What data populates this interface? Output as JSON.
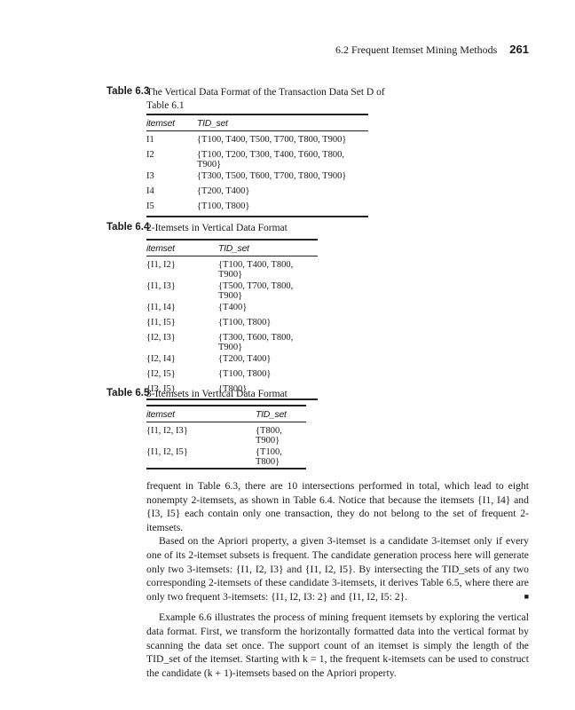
{
  "header": {
    "running_title": "6.2 Frequent Itemset Mining Methods",
    "page_number": "261"
  },
  "tables": [
    {
      "label": "Table 6.3",
      "caption": "The Vertical Data Format of the Transaction Data Set D of Table 6.1",
      "columns": [
        "itemset",
        "TID_set"
      ],
      "rows": [
        [
          "I1",
          "{T100, T400, T500, T700, T800, T900}"
        ],
        [
          "I2",
          "{T100, T200, T300, T400, T600, T800, T900}"
        ],
        [
          "I3",
          "{T300, T500, T600, T700, T800, T900}"
        ],
        [
          "I4",
          "{T200, T400}"
        ],
        [
          "I5",
          "{T100, T800}"
        ]
      ]
    },
    {
      "label": "Table 6.4",
      "caption": "2-Itemsets in Vertical Data Format",
      "columns": [
        "itemset",
        "TID_set"
      ],
      "rows": [
        [
          "{I1, I2}",
          "{T100, T400, T800, T900}"
        ],
        [
          "{I1, I3}",
          "{T500, T700, T800, T900}"
        ],
        [
          "{I1, I4}",
          "{T400}"
        ],
        [
          "{I1, I5}",
          "{T100, T800}"
        ],
        [
          "{I2, I3}",
          "{T300, T600, T800, T900}"
        ],
        [
          "{I2, I4}",
          "{T200, T400}"
        ],
        [
          "{I2, I5}",
          "{T100, T800}"
        ],
        [
          "{I3, I5}",
          "{T800}"
        ]
      ]
    },
    {
      "label": "Table 6.5",
      "caption": "3-Itemsets in Vertical Data Format",
      "columns": [
        "itemset",
        "TID_set"
      ],
      "rows": [
        [
          "{I1, I2, I3}",
          "{T800, T900}"
        ],
        [
          "{I1, I2, I5}",
          "{T100, T800}"
        ]
      ]
    }
  ],
  "paragraphs": [
    "frequent in Table 6.3, there are 10 intersections performed in total, which lead to eight nonempty 2-itemsets, as shown in Table 6.4. Notice that because the itemsets {I1, I4} and {I3, I5} each contain only one transaction, they do not belong to the set of frequent 2-itemsets.",
    "Based on the Apriori property, a given 3-itemset is a candidate 3-itemset only if every one of its 2-itemset subsets is frequent. The candidate generation process here will generate only two 3-itemsets: {I1, I2, I3} and {I1, I2, I5}. By intersecting the TID_sets of any two corresponding 2-itemsets of these candidate 3-itemsets, it derives Table 6.5, where there are only two frequent 3-itemsets: {I1, I2, I3: 2} and {I1, I2, I5: 2}.",
    "Example 6.6 illustrates the process of mining frequent itemsets by exploring the vertical data format. First, we transform the horizontally formatted data into the vertical format by scanning the data set once. The support count of an itemset is simply the length of the TID_set of the itemset. Starting with k = 1, the frequent k-itemsets can be used to construct the candidate (k + 1)-itemsets based on the Apriori property."
  ],
  "end_of_example_mark": "■"
}
